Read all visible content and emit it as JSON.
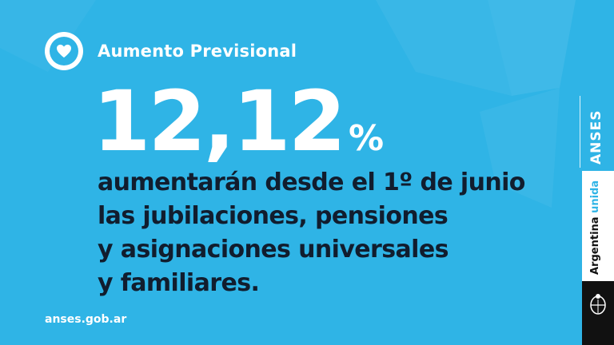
{
  "colors": {
    "background": "#2fb4e6",
    "text_dark": "#111d2e",
    "text_light": "#ffffff",
    "brand_panel": "#ffffff",
    "brand_panel_dark": "#111111"
  },
  "header": {
    "icon": "heart-icon",
    "title": "Aumento Previsional"
  },
  "highlight": {
    "value": "12,12",
    "unit": "%"
  },
  "headline": {
    "lines": [
      "aumentarán desde el 1º de junio",
      "las jubilaciones, pensiones",
      "y asignaciones universales",
      "y familiares."
    ]
  },
  "footer": {
    "url": "anses.gob.ar"
  },
  "branding": {
    "anses": "ANSES",
    "argentina": "Argentina",
    "unida": "unida",
    "emblem": "national-emblem-icon"
  }
}
